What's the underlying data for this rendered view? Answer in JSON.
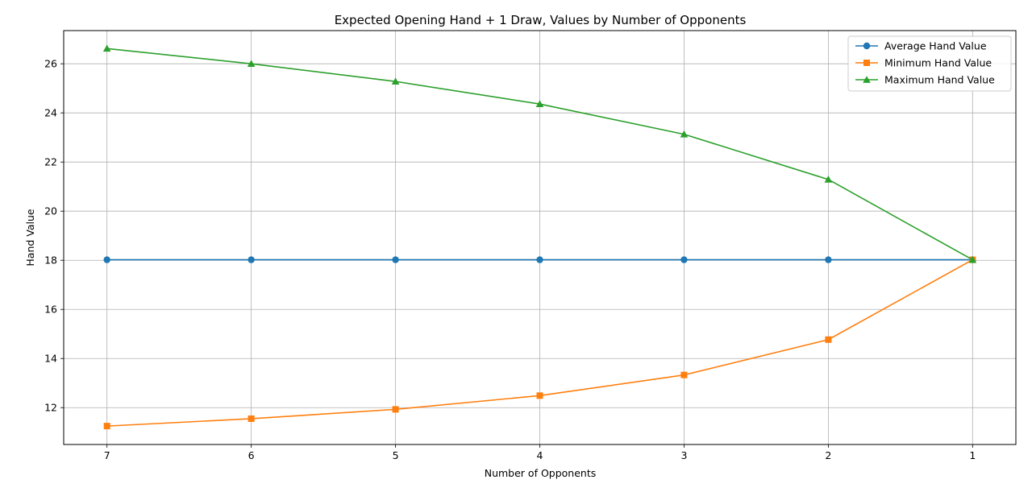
{
  "chart_data": {
    "type": "line",
    "title": "Expected Opening Hand + 1 Draw, Values by Number of Opponents",
    "xlabel": "Number of Opponents",
    "ylabel": "Hand Value",
    "x": [
      7,
      6,
      5,
      4,
      3,
      2,
      1
    ],
    "x_tick_labels": [
      "7",
      "6",
      "5",
      "4",
      "3",
      "2",
      "1"
    ],
    "x_axis_inverted": true,
    "y_ticks": [
      12,
      14,
      16,
      18,
      20,
      22,
      24,
      26
    ],
    "y_tick_labels": [
      "12",
      "14",
      "16",
      "18",
      "20",
      "22",
      "24",
      "26"
    ],
    "ylim": [
      10.5,
      27.35
    ],
    "grid": true,
    "legend_position": "top-right",
    "series": [
      {
        "name": "Average Hand Value",
        "color": "#1f77b4",
        "marker": "circle",
        "values": [
          18.02,
          18.02,
          18.02,
          18.02,
          18.02,
          18.02,
          18.02
        ]
      },
      {
        "name": "Minimum Hand Value",
        "color": "#ff7f0e",
        "marker": "square",
        "values": [
          11.25,
          11.55,
          11.93,
          12.49,
          13.33,
          14.77,
          18.02
        ]
      },
      {
        "name": "Maximum Hand Value",
        "color": "#2ca02c",
        "marker": "triangle",
        "values": [
          26.62,
          26.0,
          25.28,
          24.36,
          23.13,
          21.29,
          18.02
        ]
      }
    ]
  }
}
